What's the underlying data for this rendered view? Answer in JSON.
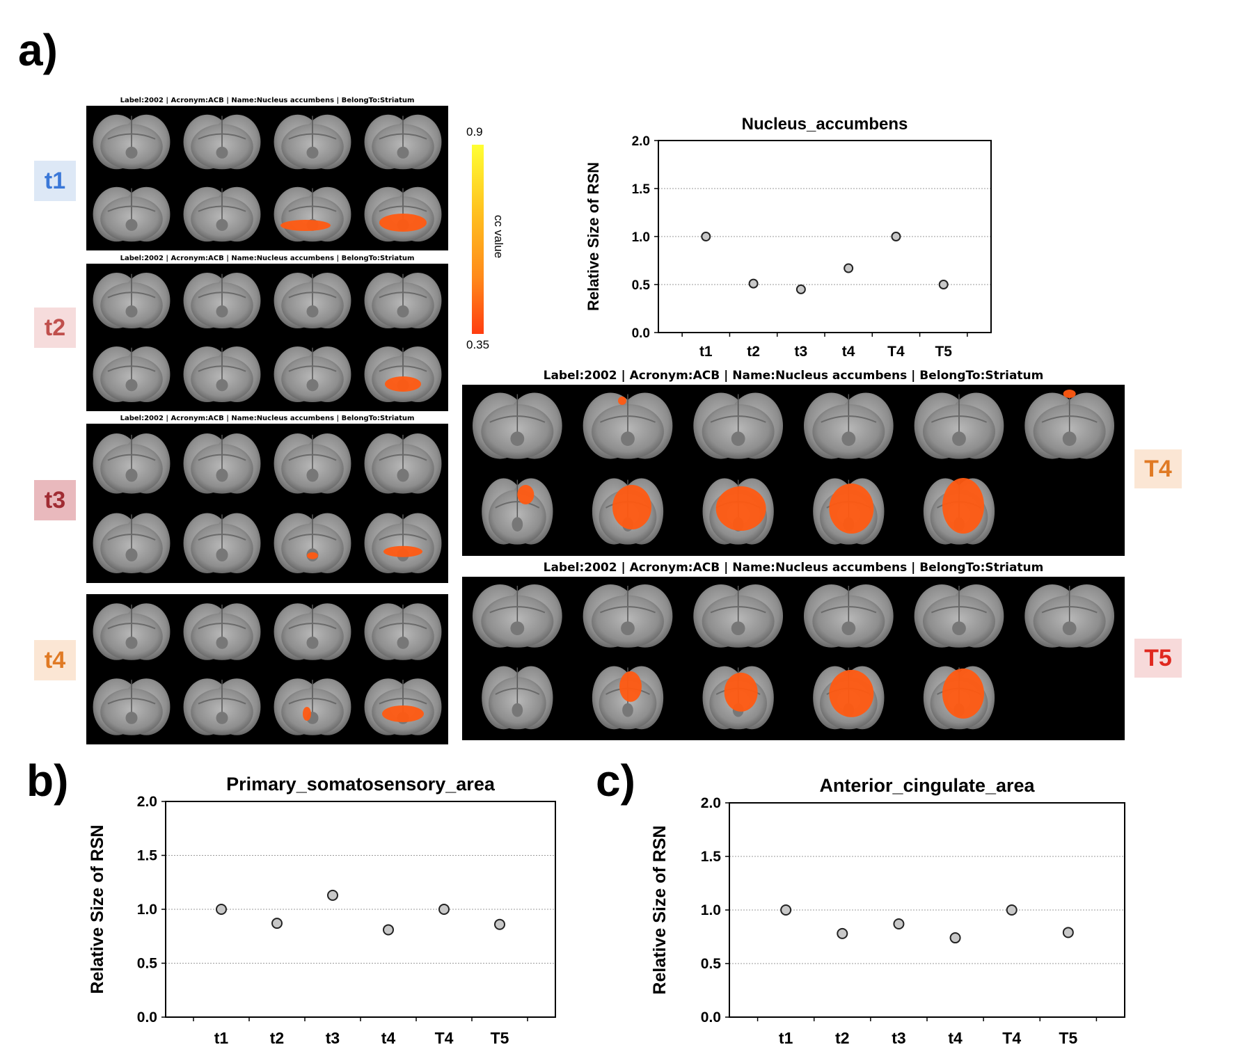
{
  "panels": {
    "a": "a)",
    "b": "b)",
    "c": "c)"
  },
  "caption_small": "Label:2002 | Acronym:ACB | Name:Nucleus accumbens | BelongTo:Striatum",
  "caption_large": "Label:2002 | Acronym:ACB | Name:Nucleus accumbens | BelongTo:Striatum",
  "tags": {
    "t1": {
      "label": "t1",
      "color": "#3b78d8",
      "bg": "#dde8f6"
    },
    "t2": {
      "label": "t2",
      "color": "#c0504d",
      "bg": "#f6dcdc"
    },
    "t3": {
      "label": "t3",
      "color": "#a02c33",
      "bg": "#e9b9bd"
    },
    "t4": {
      "label": "t4",
      "color": "#e07a24",
      "bg": "#fbe6d4"
    },
    "T4": {
      "label": "T4",
      "color": "#e07a24",
      "bg": "#fbe6d4"
    },
    "T5": {
      "label": "T5",
      "color": "#e0281f",
      "bg": "#f7dada"
    }
  },
  "colorbar": {
    "max": "0.9",
    "min": "0.35",
    "label": "cc value"
  },
  "chart_data": [
    {
      "type": "scatter",
      "title": "Nucleus_accumbens",
      "xlabel": "",
      "ylabel": "Relative Size of RSN",
      "categories": [
        "t1",
        "t2",
        "t3",
        "t4",
        "T4",
        "T5"
      ],
      "values": [
        1.0,
        0.51,
        0.45,
        0.67,
        1.0,
        0.5
      ],
      "ylim": [
        0,
        2.0
      ],
      "yticks": [
        "0.0",
        "0.5",
        "1.0",
        "1.5",
        "2.0"
      ],
      "grid": true
    },
    {
      "type": "scatter",
      "title": "Primary_somatosensory_area",
      "xlabel": "",
      "ylabel": "Relative Size of RSN",
      "categories": [
        "t1",
        "t2",
        "t3",
        "t4",
        "T4",
        "T5"
      ],
      "values": [
        1.0,
        0.87,
        1.13,
        0.81,
        1.0,
        0.86
      ],
      "ylim": [
        0,
        2.0
      ],
      "yticks": [
        "0.0",
        "0.5",
        "1.0",
        "1.5",
        "2.0"
      ],
      "grid": true
    },
    {
      "type": "scatter",
      "title": "Anterior_cingulate_area",
      "xlabel": "",
      "ylabel": "Relative Size of RSN",
      "categories": [
        "t1",
        "t2",
        "t3",
        "t4",
        "T4",
        "T5"
      ],
      "values": [
        1.0,
        0.78,
        0.87,
        0.74,
        1.0,
        0.79
      ],
      "ylim": [
        0,
        2.0
      ],
      "yticks": [
        "0.0",
        "0.5",
        "1.0",
        "1.5",
        "2.0"
      ],
      "grid": true
    }
  ]
}
